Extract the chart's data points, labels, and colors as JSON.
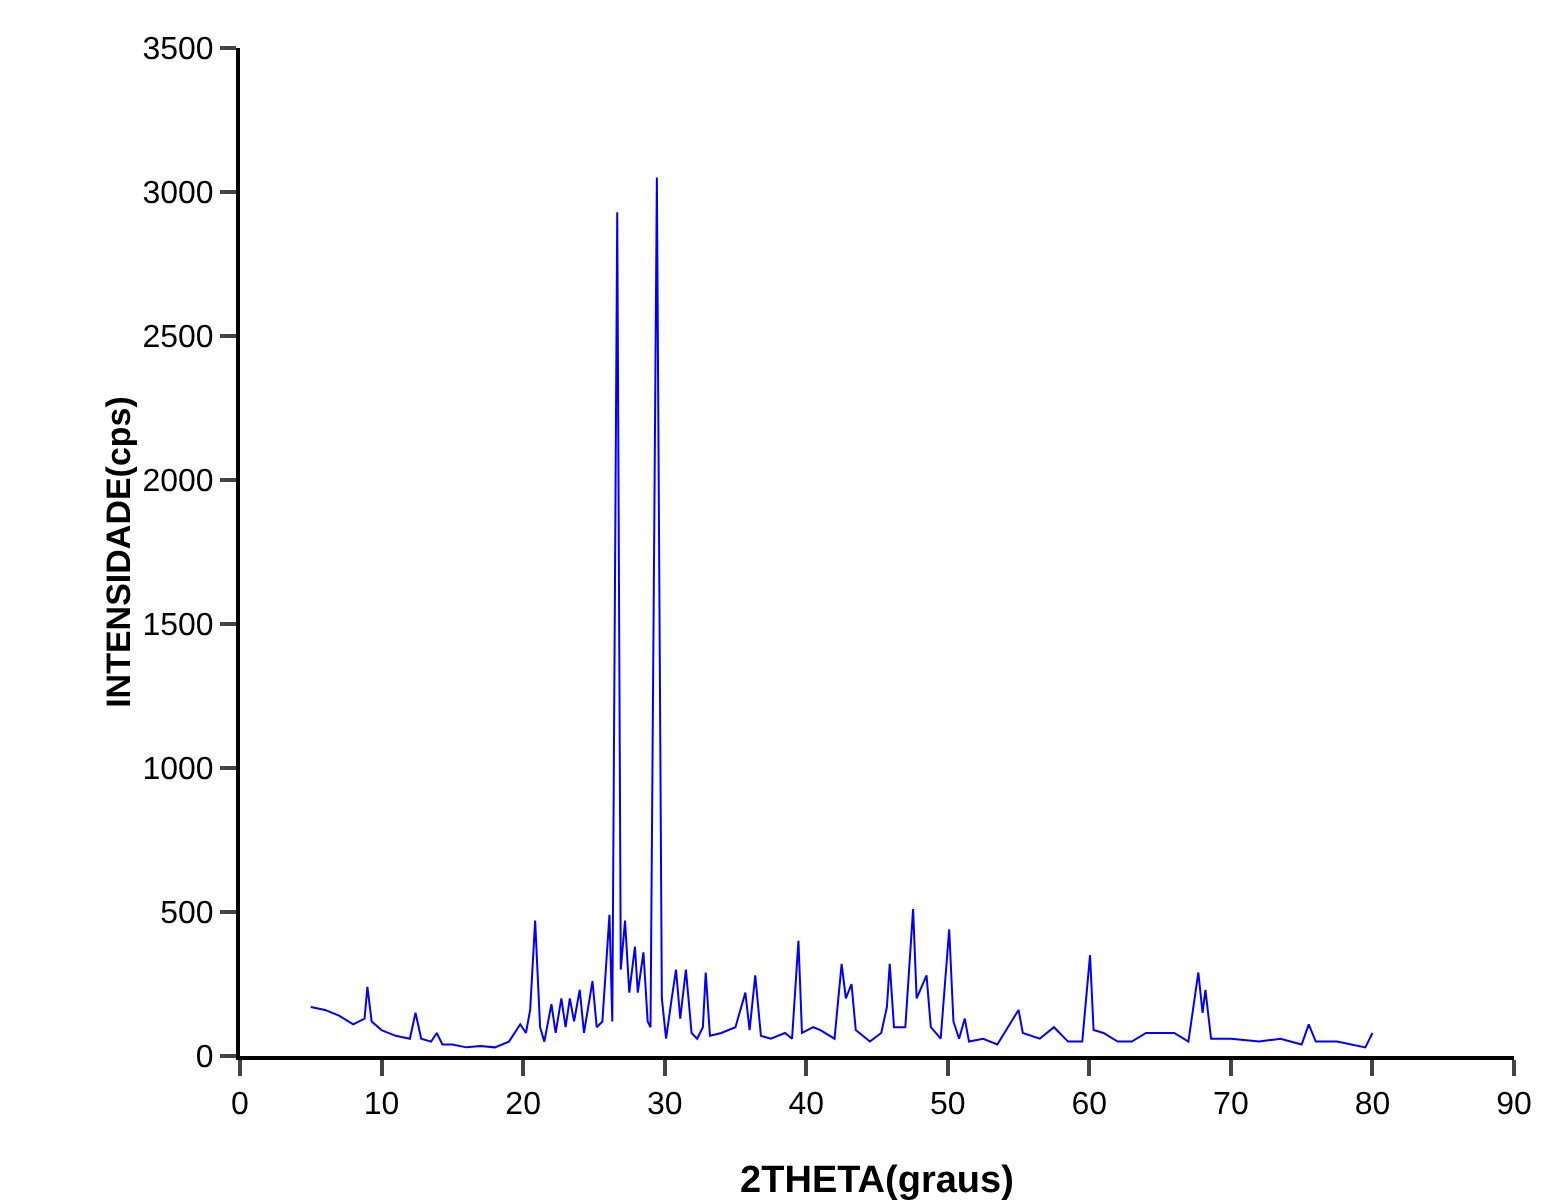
{
  "chart_data": {
    "type": "line",
    "xlabel": "2THETA(graus)",
    "ylabel": "INTENSIDADE(cps)",
    "series": [
      {
        "color": "#0000ff",
        "x": [
          5,
          6,
          7,
          8,
          8.8,
          9.0,
          9.3,
          10,
          11,
          12,
          12.4,
          12.8,
          13.5,
          13.9,
          14.3,
          15,
          16,
          17,
          18,
          19,
          19.8,
          20.2,
          20.5,
          20.85,
          21.2,
          21.5,
          22,
          22.3,
          22.7,
          23.0,
          23.3,
          23.6,
          24.0,
          24.3,
          24.9,
          25.2,
          25.6,
          26.1,
          26.3,
          26.65,
          26.9,
          27.2,
          27.5,
          27.9,
          28.1,
          28.5,
          28.8,
          29.0,
          29.45,
          29.8,
          30.1,
          30.5,
          30.8,
          31.1,
          31.5,
          31.9,
          32.3,
          32.7,
          32.9,
          33.2,
          34,
          35,
          35.7,
          36.0,
          36.4,
          36.8,
          37.5,
          38.5,
          39.0,
          39.45,
          39.7,
          40.5,
          41,
          42,
          42.5,
          42.8,
          43.2,
          43.5,
          44.5,
          45.3,
          45.7,
          45.9,
          46.2,
          47,
          47.55,
          47.8,
          48.5,
          48.8,
          49.5,
          50.1,
          50.4,
          50.8,
          51.2,
          51.5,
          52.5,
          53.5,
          55,
          55.3,
          56.5,
          57.5,
          58.5,
          59.5,
          60.05,
          60.3,
          61,
          62,
          63,
          64,
          65,
          66,
          67,
          67.7,
          68.0,
          68.2,
          68.6,
          70,
          72,
          73.5,
          75,
          75.5,
          76,
          77.5,
          79.5,
          80
        ],
        "values": [
          170,
          160,
          140,
          110,
          130,
          240,
          120,
          90,
          70,
          60,
          150,
          60,
          50,
          80,
          40,
          40,
          30,
          35,
          30,
          50,
          110,
          80,
          160,
          470,
          100,
          50,
          180,
          80,
          200,
          100,
          200,
          120,
          230,
          80,
          260,
          100,
          120,
          490,
          120,
          2930,
          300,
          470,
          220,
          380,
          220,
          360,
          120,
          100,
          3050,
          200,
          60,
          200,
          300,
          130,
          300,
          80,
          60,
          100,
          290,
          70,
          80,
          100,
          220,
          90,
          280,
          70,
          60,
          80,
          60,
          400,
          80,
          100,
          90,
          60,
          320,
          200,
          250,
          90,
          50,
          80,
          170,
          320,
          100,
          100,
          510,
          200,
          280,
          100,
          60,
          440,
          120,
          60,
          130,
          50,
          60,
          40,
          160,
          80,
          60,
          100,
          50,
          50,
          350,
          90,
          80,
          50,
          50,
          80,
          80,
          80,
          50,
          290,
          150,
          230,
          60,
          60,
          50,
          60,
          40,
          110,
          50,
          50,
          30,
          80
        ]
      }
    ],
    "xlim": [
      0,
      90
    ],
    "xticks": [
      0,
      10,
      20,
      30,
      40,
      50,
      60,
      70,
      80,
      90
    ],
    "ylim": [
      0,
      3500
    ],
    "yticks": [
      0,
      500,
      1000,
      1500,
      2000,
      2500,
      3000,
      3500
    ],
    "grid": false,
    "legend": false,
    "marker": "none",
    "line_style": "solid"
  }
}
